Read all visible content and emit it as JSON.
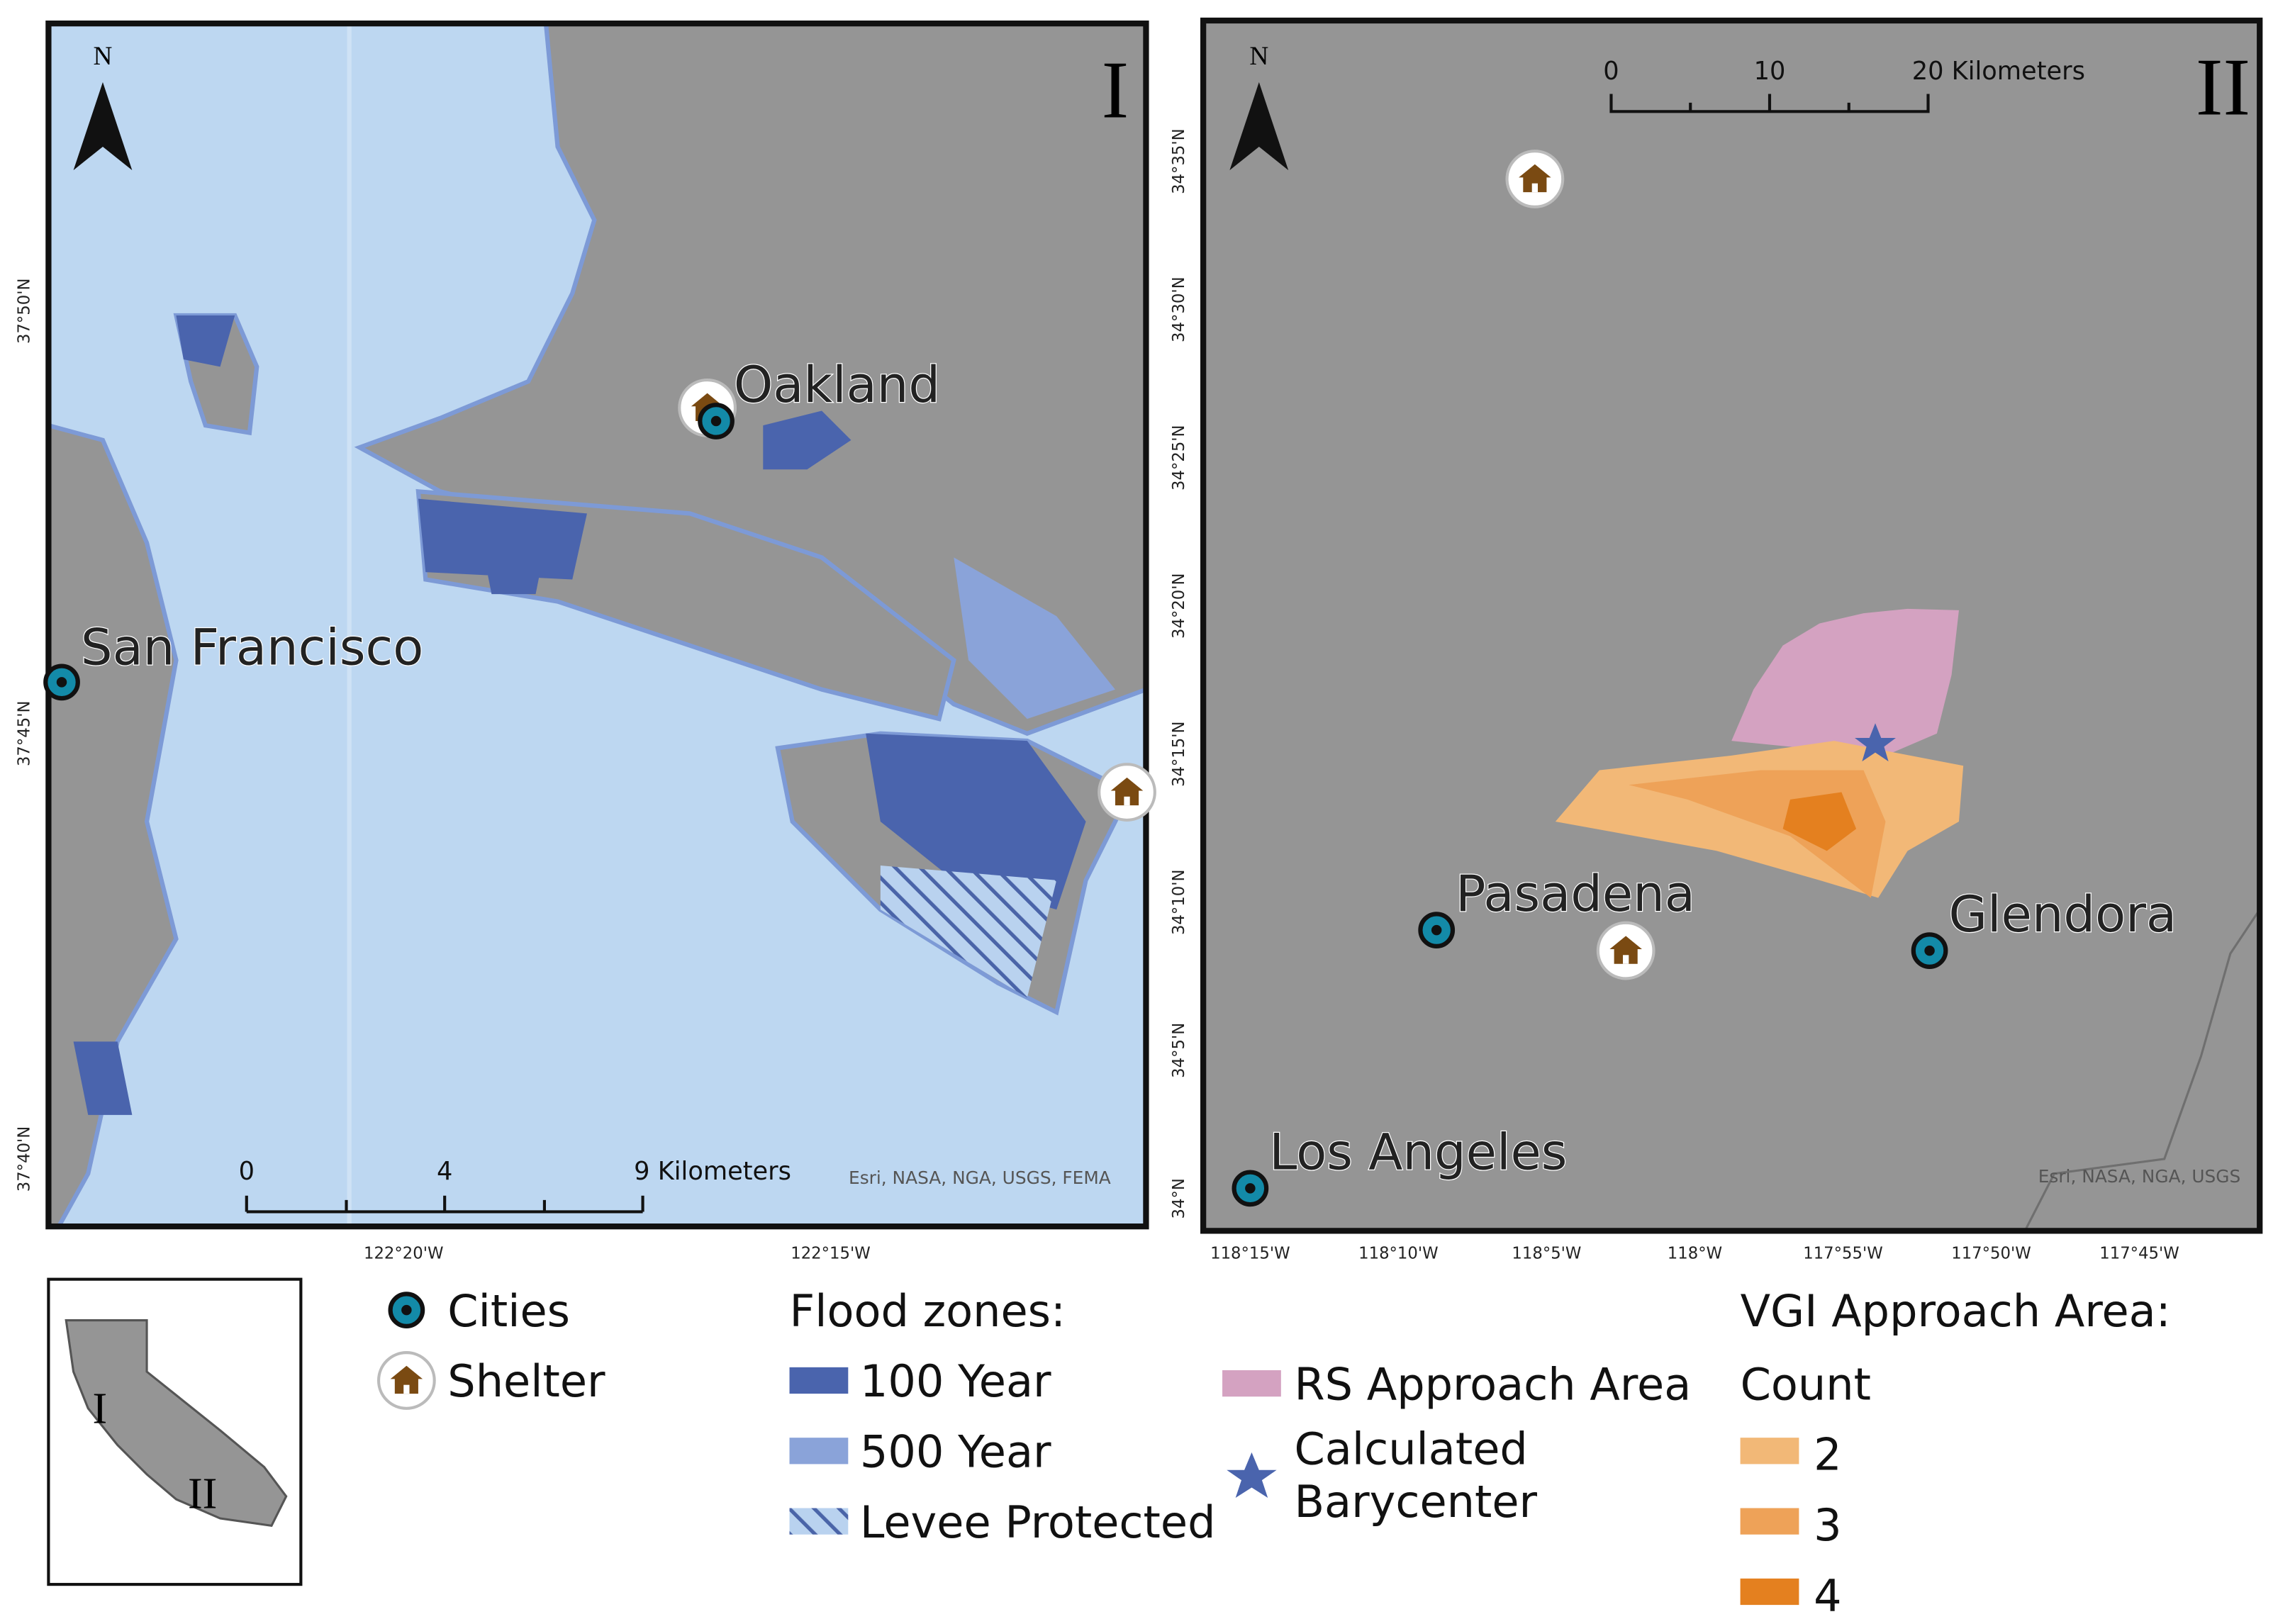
{
  "panel_1": {
    "label": "I",
    "north": "N",
    "cities": [
      "Oakland",
      "San Francisco"
    ],
    "scale_bar": [
      "0",
      "4",
      "9 Kilometers"
    ],
    "attribution": "Esri, NASA, NGA, USGS, FEMA",
    "lat_labels": [
      "37°50'N",
      "37°45'N",
      "37°40'N"
    ],
    "lon_labels": [
      "122°20'W",
      "122°15'W"
    ]
  },
  "panel_2": {
    "label": "II",
    "north": "N",
    "cities": [
      "Pasadena",
      "Glendora",
      "Los Angeles"
    ],
    "scale_bar": [
      "0",
      "10",
      "20 Kilometers"
    ],
    "attribution": "Esri, NASA, NGA, USGS",
    "lat_labels": [
      "34°35'N",
      "34°30'N",
      "34°25'N",
      "34°20'N",
      "34°15'N",
      "34°10'N",
      "34°5'N",
      "34°N"
    ],
    "lon_labels": [
      "118°15'W",
      "118°10'W",
      "118°5'W",
      "118°W",
      "117°55'W",
      "117°50'W",
      "117°45'W"
    ]
  },
  "legend": {
    "cities": "Cities",
    "shelter": "Shelter",
    "flood_title": "Flood zones:",
    "flood": [
      "100 Year",
      "500 Year",
      "Levee Protected"
    ],
    "rs": "RS Approach Area",
    "barycenter": [
      "Calculated",
      "Barycenter"
    ],
    "vgi_title": "VGI Approach Area:",
    "count_title": "Count",
    "counts": [
      "2",
      "3",
      "4"
    ]
  },
  "inset": {
    "labels": [
      "I",
      "II"
    ]
  }
}
